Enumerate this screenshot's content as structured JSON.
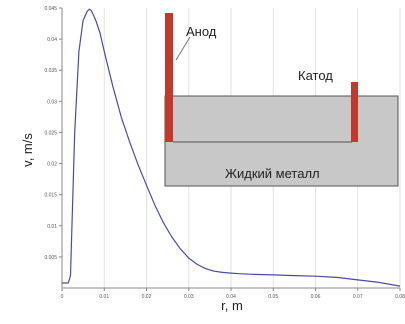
{
  "chart_data": {
    "type": "line",
    "xlabel": "r, m",
    "ylabel": "v, m/s",
    "xlim": [
      0,
      0.08
    ],
    "ylim": [
      0,
      0.045
    ],
    "x_ticks": [
      "0",
      "0.01",
      "0.02",
      "0.03",
      "0.04",
      "0.05",
      "0.06",
      "0.07",
      "0.08"
    ],
    "y_ticks": [
      "0.005",
      "0.01",
      "0.015",
      "0.02",
      "0.025",
      "0.03",
      "0.035",
      "0.04",
      "0.045"
    ],
    "grid": "vertical",
    "series": [
      {
        "color": "#4a4aa8",
        "x": [
          0,
          0.0015,
          0.002,
          0.003,
          0.004,
          0.005,
          0.006,
          0.0065,
          0.007,
          0.008,
          0.009,
          0.01,
          0.012,
          0.014,
          0.016,
          0.018,
          0.02,
          0.022,
          0.024,
          0.026,
          0.028,
          0.03,
          0.032,
          0.034,
          0.036,
          0.038,
          0.04,
          0.042,
          0.045,
          0.05,
          0.055,
          0.06,
          0.065,
          0.07,
          0.075,
          0.08
        ],
        "y": [
          0.0008,
          0.0008,
          0.002,
          0.025,
          0.038,
          0.043,
          0.0445,
          0.0448,
          0.0445,
          0.043,
          0.041,
          0.038,
          0.0325,
          0.0275,
          0.0235,
          0.0198,
          0.0165,
          0.0133,
          0.0105,
          0.0082,
          0.0063,
          0.0048,
          0.0038,
          0.0031,
          0.0027,
          0.0025,
          0.0024,
          0.0023,
          0.0022,
          0.0021,
          0.002,
          0.0019,
          0.0017,
          0.0013,
          0.0009,
          0.0003
        ]
      }
    ]
  },
  "inset": {
    "anode_label": "Анод",
    "cathode_label": "Катод",
    "metal_label": "Жидкий металл",
    "colors": {
      "electrode": "#c0392b",
      "metal": "#c8c8c8",
      "outline": "#555555"
    }
  }
}
